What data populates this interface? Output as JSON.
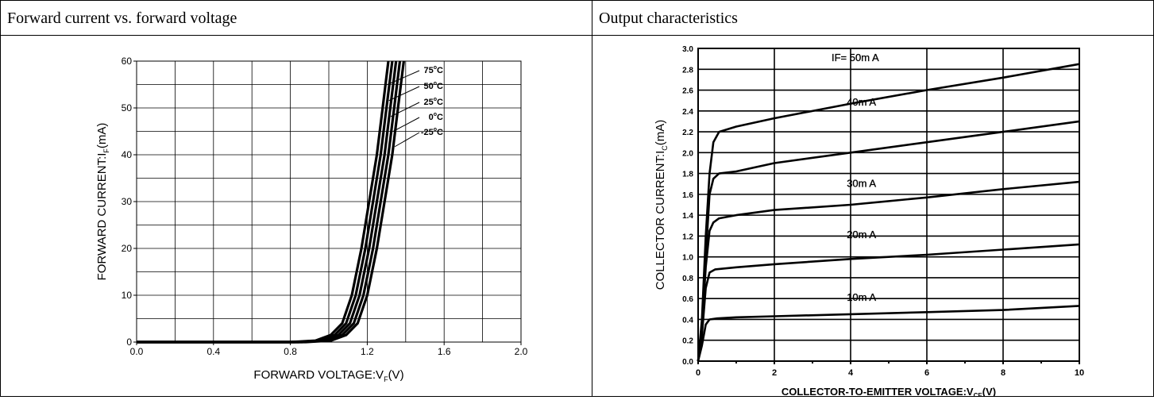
{
  "panels": {
    "left": {
      "header": "Forward current vs. forward voltage"
    },
    "right": {
      "header": "Output characteristics"
    }
  },
  "chart_data": [
    {
      "type": "line",
      "xlabel": "FORWARD VOLTAGE:V",
      "xlabel_sub": "F",
      "xlabel_suffix": "(V)",
      "ylabel": "FORWARD CURRENT:I",
      "ylabel_sub": "F",
      "ylabel_suffix": "(mA)",
      "xlim": [
        0.0,
        2.0
      ],
      "ylim": [
        0,
        60
      ],
      "x_ticks": [
        "0.0",
        "0.4",
        "0.8",
        "1.2",
        "1.6",
        "2.0"
      ],
      "y_ticks": [
        "0",
        "10",
        "20",
        "30",
        "40",
        "50",
        "60"
      ],
      "grid": true,
      "series": [
        {
          "name": "75°C",
          "label_main": "75",
          "label_unit": "C",
          "points": [
            [
              0,
              0
            ],
            [
              0.8,
              0
            ],
            [
              0.93,
              0.3
            ],
            [
              1.01,
              1.5
            ],
            [
              1.07,
              4
            ],
            [
              1.12,
              10
            ],
            [
              1.17,
              20
            ],
            [
              1.21,
              30
            ],
            [
              1.25,
              40
            ],
            [
              1.28,
              50
            ],
            [
              1.31,
              60
            ]
          ]
        },
        {
          "name": "50°C",
          "label_main": "50",
          "label_unit": "C",
          "points": [
            [
              0,
              0
            ],
            [
              0.82,
              0
            ],
            [
              0.95,
              0.3
            ],
            [
              1.03,
              1.5
            ],
            [
              1.09,
              4
            ],
            [
              1.14,
              10
            ],
            [
              1.19,
              20
            ],
            [
              1.23,
              30
            ],
            [
              1.27,
              40
            ],
            [
              1.3,
              50
            ],
            [
              1.33,
              60
            ]
          ]
        },
        {
          "name": "25°C",
          "label_main": "25",
          "label_unit": "C",
          "points": [
            [
              0,
              0
            ],
            [
              0.84,
              0
            ],
            [
              0.97,
              0.3
            ],
            [
              1.05,
              1.5
            ],
            [
              1.11,
              4
            ],
            [
              1.16,
              10
            ],
            [
              1.21,
              20
            ],
            [
              1.25,
              30
            ],
            [
              1.29,
              40
            ],
            [
              1.32,
              50
            ],
            [
              1.35,
              60
            ]
          ]
        },
        {
          "name": "0°C",
          "label_main": "0",
          "label_unit": "C",
          "points": [
            [
              0,
              0
            ],
            [
              0.86,
              0
            ],
            [
              0.99,
              0.3
            ],
            [
              1.07,
              1.5
            ],
            [
              1.13,
              4
            ],
            [
              1.18,
              10
            ],
            [
              1.23,
              20
            ],
            [
              1.27,
              30
            ],
            [
              1.31,
              40
            ],
            [
              1.34,
              50
            ],
            [
              1.37,
              60
            ]
          ]
        },
        {
          "name": "-25°C",
          "label_main": "-25",
          "label_unit": "C",
          "points": [
            [
              0,
              0
            ],
            [
              0.88,
              0
            ],
            [
              1.01,
              0.3
            ],
            [
              1.09,
              1.5
            ],
            [
              1.15,
              4
            ],
            [
              1.2,
              10
            ],
            [
              1.25,
              20
            ],
            [
              1.29,
              30
            ],
            [
              1.33,
              40
            ],
            [
              1.36,
              50
            ],
            [
              1.39,
              60
            ]
          ]
        }
      ]
    },
    {
      "type": "line",
      "xlabel": "COLLECTOR-TO-EMITTER VOLTAGE:V",
      "xlabel_sub": "CE",
      "xlabel_suffix": "(V)",
      "ylabel": "COLLECTOR CURRENT:I",
      "ylabel_sub": "C",
      "ylabel_suffix": "(mA)",
      "xlim": [
        0,
        10
      ],
      "ylim": [
        0,
        3.0
      ],
      "x_ticks": [
        "0",
        "2",
        "4",
        "6",
        "8",
        "10"
      ],
      "y_ticks": [
        "0.0",
        "0.2",
        "0.4",
        "0.6",
        "0.8",
        "1.0",
        "1.2",
        "1.4",
        "1.6",
        "1.8",
        "2.0",
        "2.2",
        "2.4",
        "2.6",
        "2.8",
        "3.0"
      ],
      "grid": true,
      "series": [
        {
          "name": "IF= 50m A",
          "points": [
            [
              0,
              0
            ],
            [
              0.1,
              0.4
            ],
            [
              0.2,
              1.2
            ],
            [
              0.3,
              1.8
            ],
            [
              0.4,
              2.1
            ],
            [
              0.55,
              2.2
            ],
            [
              1,
              2.25
            ],
            [
              2,
              2.33
            ],
            [
              4,
              2.47
            ],
            [
              6,
              2.6
            ],
            [
              8,
              2.72
            ],
            [
              10,
              2.85
            ]
          ]
        },
        {
          "name": "40m A",
          "points": [
            [
              0,
              0
            ],
            [
              0.1,
              0.35
            ],
            [
              0.2,
              1.0
            ],
            [
              0.3,
              1.6
            ],
            [
              0.4,
              1.75
            ],
            [
              0.55,
              1.8
            ],
            [
              1,
              1.82
            ],
            [
              2,
              1.9
            ],
            [
              4,
              2.0
            ],
            [
              6,
              2.1
            ],
            [
              8,
              2.2
            ],
            [
              10,
              2.3
            ]
          ]
        },
        {
          "name": "30m A",
          "points": [
            [
              0,
              0
            ],
            [
              0.1,
              0.3
            ],
            [
              0.2,
              0.9
            ],
            [
              0.3,
              1.25
            ],
            [
              0.4,
              1.33
            ],
            [
              0.55,
              1.37
            ],
            [
              1,
              1.4
            ],
            [
              2,
              1.45
            ],
            [
              4,
              1.5
            ],
            [
              6,
              1.57
            ],
            [
              8,
              1.65
            ],
            [
              10,
              1.72
            ]
          ]
        },
        {
          "name": "20m A",
          "points": [
            [
              0,
              0
            ],
            [
              0.1,
              0.25
            ],
            [
              0.2,
              0.7
            ],
            [
              0.3,
              0.85
            ],
            [
              0.45,
              0.88
            ],
            [
              1,
              0.9
            ],
            [
              2,
              0.93
            ],
            [
              4,
              0.98
            ],
            [
              6,
              1.02
            ],
            [
              8,
              1.07
            ],
            [
              10,
              1.12
            ]
          ]
        },
        {
          "name": "10m A",
          "points": [
            [
              0,
              0
            ],
            [
              0.1,
              0.15
            ],
            [
              0.2,
              0.35
            ],
            [
              0.3,
              0.4
            ],
            [
              0.5,
              0.41
            ],
            [
              1,
              0.42
            ],
            [
              2,
              0.43
            ],
            [
              4,
              0.45
            ],
            [
              6,
              0.47
            ],
            [
              8,
              0.49
            ],
            [
              10,
              0.53
            ]
          ]
        }
      ]
    }
  ]
}
